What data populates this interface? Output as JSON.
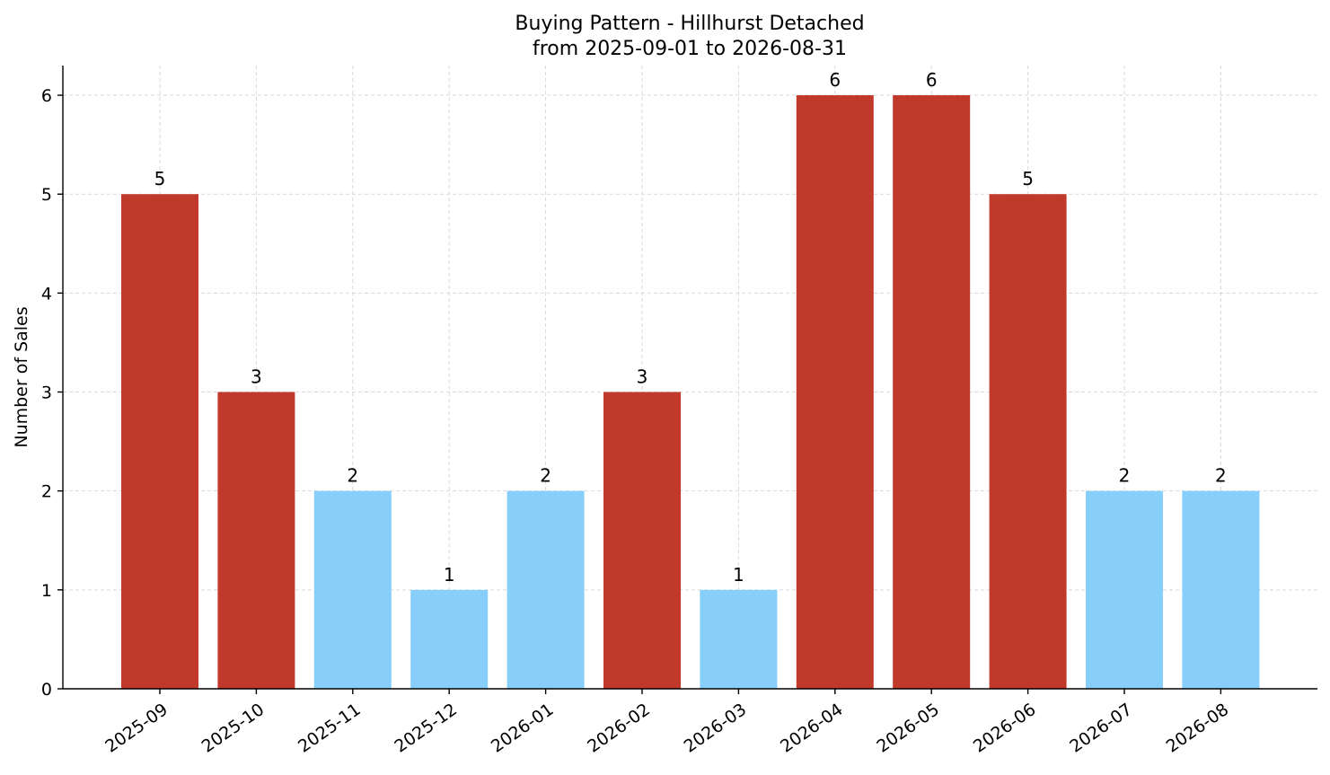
{
  "chart_data": {
    "type": "bar",
    "title": "Buying Pattern - Hillhurst Detached",
    "subtitle": "from 2025-09-01 to 2026-08-31",
    "xlabel": "",
    "ylabel": "Number of Sales",
    "ylim": [
      0,
      6.3
    ],
    "yticks": [
      "0",
      "1",
      "2",
      "3",
      "4",
      "5",
      "6"
    ],
    "grid": true,
    "categories": [
      "2025-09",
      "2025-10",
      "2025-11",
      "2025-12",
      "2026-01",
      "2026-02",
      "2026-03",
      "2026-04",
      "2026-05",
      "2026-06",
      "2026-07",
      "2026-08"
    ],
    "values": [
      5,
      3,
      2,
      1,
      2,
      3,
      1,
      6,
      6,
      5,
      2,
      2
    ],
    "value_labels": [
      "5",
      "3",
      "2",
      "1",
      "2",
      "3",
      "1",
      "6",
      "6",
      "5",
      "2",
      "2"
    ],
    "bar_colors": [
      "#c0392b",
      "#c0392b",
      "#87cefa",
      "#87cefa",
      "#87cefa",
      "#c0392b",
      "#87cefa",
      "#c0392b",
      "#c0392b",
      "#c0392b",
      "#87cefa",
      "#87cefa"
    ]
  }
}
